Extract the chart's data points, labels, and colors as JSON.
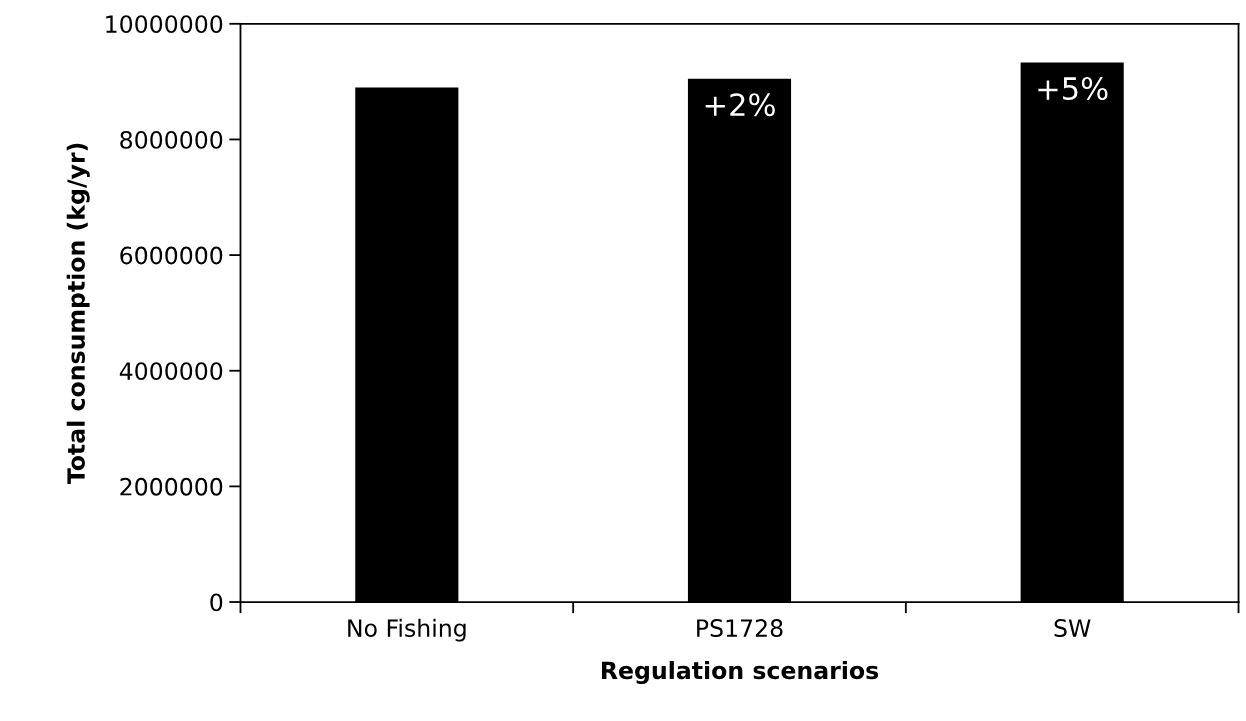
{
  "chart_data": {
    "type": "bar",
    "xlabel": "Regulation scenarios",
    "ylabel": "Total consumption (kg/yr)",
    "categories": [
      "No Fishing",
      "PS1728",
      "SW"
    ],
    "values": [
      8900000,
      9050000,
      9330000
    ],
    "color": "#000000",
    "ylim": [
      0,
      10000000
    ],
    "yticks": [
      0,
      2000000,
      4000000,
      6000000,
      8000000,
      10000000
    ],
    "grid": false,
    "legend": false,
    "annotations": [
      {
        "text": "+2%",
        "x": "PS1728",
        "y": 9050000
      },
      {
        "text": "+5%",
        "x": "SW",
        "y": 9330000
      }
    ]
  }
}
